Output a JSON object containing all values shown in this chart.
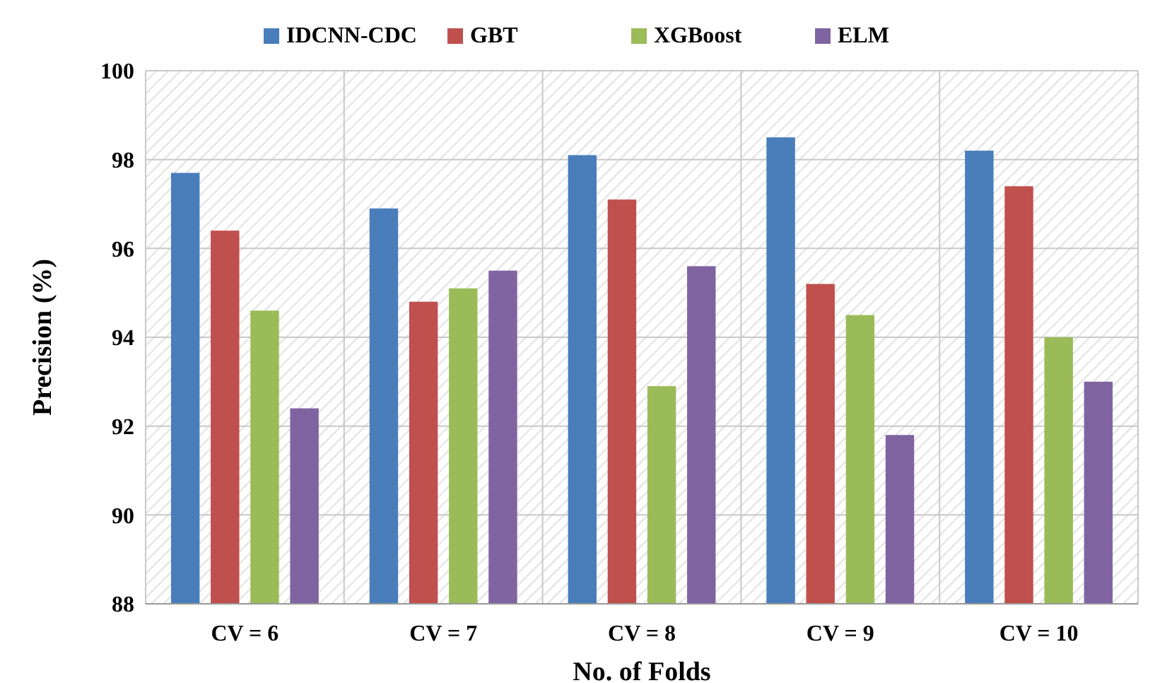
{
  "chart_data": {
    "type": "bar",
    "xlabel": "No. of Folds",
    "ylabel": "Precision (%)",
    "categories": [
      "CV = 6",
      "CV = 7",
      "CV = 8",
      "CV = 9",
      "CV = 10"
    ],
    "series": [
      {
        "name": "IDCNN-CDC",
        "color": "#4a7ebb",
        "values": [
          97.7,
          96.9,
          98.1,
          98.5,
          98.2
        ]
      },
      {
        "name": "GBT",
        "color": "#c0504d",
        "values": [
          96.4,
          94.8,
          97.1,
          95.2,
          97.4
        ]
      },
      {
        "name": "XGBoost",
        "color": "#9bbb59",
        "values": [
          94.6,
          95.1,
          92.9,
          94.5,
          94.0
        ]
      },
      {
        "name": "ELM",
        "color": "#8064a2",
        "values": [
          92.4,
          95.5,
          95.6,
          91.8,
          93.0
        ]
      }
    ],
    "ylim": [
      88,
      100
    ],
    "yticks": [
      88,
      90,
      92,
      94,
      96,
      98,
      100
    ],
    "grid": true,
    "legend": "top"
  }
}
